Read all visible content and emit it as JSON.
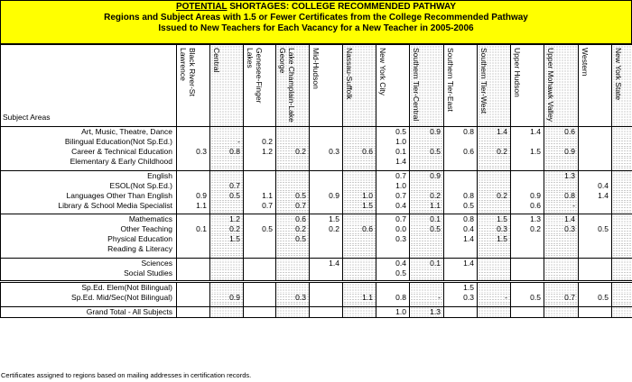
{
  "title": {
    "line1_prefix": "POTENTIAL",
    "line1_rest": " SHORTAGES:  COLLEGE RECOMMENDED PATHWAY",
    "line2": "Regions and Subject Areas with 1.5 or Fewer Certificates from the College Recommended Pathway",
    "line3": "Issued to New Teachers for Each Vacancy for a New Teacher in 2005-2006"
  },
  "columns": {
    "subject_header": "Subject Areas",
    "regions": [
      "Black River-St Lawrence",
      "Central",
      "Genesee-Finger Lakes",
      "Lake Champlain-Lake George",
      "Mid-Hudson",
      "Nassau-Suffolk",
      "New York City",
      "Southern Tier-Central",
      "Southern Tier-East",
      "Southern Tier-West",
      "Upper Hudson",
      "Upper Mohawk Valley",
      "Western",
      "New York State"
    ]
  },
  "rows": [
    {
      "subject": "Art, Music, Theatre, Dance",
      "values": [
        "",
        "",
        "",
        "",
        "",
        "",
        "0.5",
        "0.9",
        "0.8",
        "1.4",
        "1.4",
        "0.6",
        "",
        "1.2"
      ]
    },
    {
      "subject": "Bilingual Education(Not Sp.Ed.)",
      "values": [
        "",
        "-",
        "0.2",
        "",
        "",
        "",
        "1.0",
        "",
        "",
        "",
        "",
        "",
        "",
        "1.2"
      ]
    },
    {
      "subject": "Career & Technical Education",
      "values": [
        "0.3",
        "0.8",
        "1.2",
        "0.2",
        "0.3",
        "0.6",
        "0.1",
        "0.5",
        "0.6",
        "0.2",
        "1.5",
        "0.9",
        "",
        "0.6"
      ]
    },
    {
      "subject": "Elementary & Early Childhood",
      "values": [
        "",
        "",
        "",
        "",
        "",
        "",
        "1.4",
        "",
        "",
        "",
        "",
        "",
        "",
        ""
      ]
    },
    {
      "subject": "English",
      "values": [
        "",
        "",
        "",
        "",
        "",
        "",
        "0.7",
        "0.9",
        "",
        "",
        "",
        "1.3",
        "",
        "1.2"
      ]
    },
    {
      "subject": "ESOL(Not Sp.Ed.)",
      "values": [
        "",
        "0.7",
        "",
        "",
        "",
        "",
        "1.0",
        "",
        "",
        "",
        "",
        "",
        "0.4",
        "1.3"
      ]
    },
    {
      "subject": "Languages Other Than English",
      "values": [
        "0.9",
        "0.5",
        "1.1",
        "0.5",
        "0.9",
        "1.0",
        "0.7",
        "0.2",
        "0.8",
        "0.2",
        "0.9",
        "0.8",
        "1.4",
        "0.8"
      ]
    },
    {
      "subject": "Library & School Media Specialist",
      "values": [
        "1.1",
        "",
        "0.7",
        "0.7",
        "",
        "1.5",
        "0.4",
        "1.1",
        "0.5",
        "",
        "0.6",
        "-",
        "",
        "1.4"
      ]
    },
    {
      "subject": "Mathematics",
      "values": [
        "",
        "1.2",
        "",
        "0.6",
        "1.5",
        "",
        "0.7",
        "0.1",
        "0.8",
        "1.5",
        "1.3",
        "1.4",
        "",
        "1.1"
      ]
    },
    {
      "subject": "Other Teaching",
      "values": [
        "0.1",
        "0.2",
        "0.5",
        "0.2",
        "0.2",
        "0.6",
        "0.0",
        "0.5",
        "0.4",
        "0.3",
        "0.2",
        "0.3",
        "0.5",
        "0.2"
      ]
    },
    {
      "subject": "Physical Education",
      "values": [
        "",
        "1.5",
        "",
        "0.5",
        "",
        "",
        "0.3",
        "",
        "1.4",
        "1.5",
        "",
        "",
        "",
        "1.4"
      ]
    },
    {
      "subject": "Reading & Literacy",
      "values": [
        "",
        "",
        "",
        "",
        "",
        "",
        "",
        "",
        "",
        "",
        "",
        "",
        "",
        ""
      ]
    },
    {
      "subject": "Sciences",
      "values": [
        "",
        "",
        "",
        "",
        "1.4",
        "",
        "0.4",
        "0.1",
        "1.4",
        "",
        "",
        "",
        "",
        "1.1"
      ]
    },
    {
      "subject": "Social Studies",
      "values": [
        "",
        "",
        "",
        "",
        "",
        "",
        "0.5",
        "",
        "",
        "",
        "",
        "",
        "",
        "1.4"
      ]
    },
    {
      "subject": "Sp.Ed. Elem(Not Bilingual)",
      "values": [
        "",
        "",
        "",
        "",
        "",
        "",
        "",
        "",
        "1.5",
        "",
        "",
        "",
        "",
        ""
      ]
    },
    {
      "subject": "Sp.Ed. Mid/Sec(Not Bilingual)",
      "values": [
        "",
        "0.9",
        "",
        "0.3",
        "",
        "1.1",
        "0.8",
        "-",
        "0.3",
        "-",
        "0.5",
        "0.7",
        "0.5",
        "0.9"
      ]
    },
    {
      "subject": "Grand Total - All Subjects",
      "values": [
        "",
        "",
        "",
        "",
        "",
        "",
        "1.0",
        "1.3",
        "",
        "",
        "",
        "",
        "",
        ""
      ]
    }
  ],
  "footnote": "Certificates assigned to regions based on mailing addresses in certification records."
}
